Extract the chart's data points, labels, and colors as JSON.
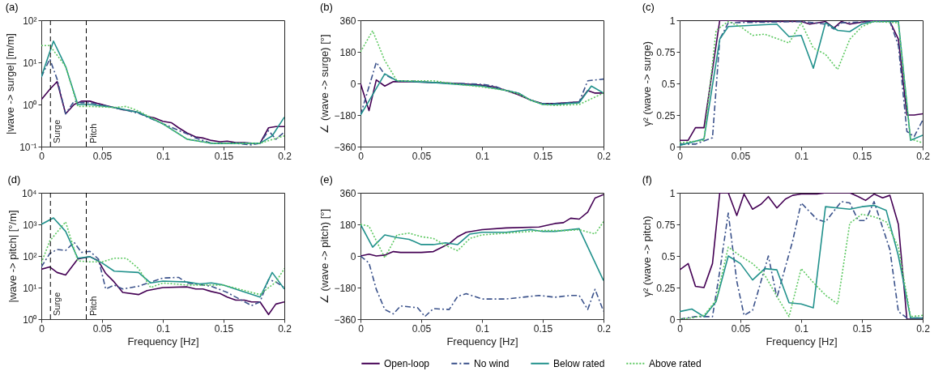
{
  "chart_data": [
    {
      "type": "line",
      "title": "(a)",
      "ylabel": "|wave -> surge| [m/m]",
      "log": "y",
      "xlim": [
        0,
        0.2
      ],
      "xticks": [
        0,
        0.05,
        0.1,
        0.15,
        0.2
      ],
      "ylim": [
        0.1,
        100
      ],
      "yticks": [
        {
          "value": 0.1,
          "label": "10⁻¹"
        },
        {
          "value": 1,
          "label": "10⁰"
        },
        {
          "value": 10,
          "label": "10¹"
        },
        {
          "value": 100,
          "label": "10²"
        }
      ],
      "ref_lines": [
        {
          "axis": "x",
          "value": 0.0075,
          "label": "Surge",
          "color": "#000000",
          "line_style": "dashed"
        },
        {
          "axis": "x",
          "value": 0.037,
          "label": "Pitch",
          "color": "#000000",
          "line_style": "dashed"
        }
      ],
      "series": [
        {
          "color": "#440154",
          "line_style": "solid",
          "x": [
            0,
            0.007,
            0.013,
            0.02,
            0.027,
            0.033,
            0.04,
            0.047,
            0.053,
            0.06,
            0.067,
            0.073,
            0.08,
            0.087,
            0.093,
            0.1,
            0.107,
            0.113,
            0.12,
            0.127,
            0.133,
            0.14,
            0.147,
            0.153,
            0.16,
            0.167,
            0.173,
            0.18,
            0.187,
            0.193,
            0.2
          ],
          "values": [
            1.3,
            2.3,
            3.5,
            0.6,
            1.0,
            1.2,
            1.2,
            1.05,
            0.95,
            0.85,
            0.75,
            0.72,
            0.65,
            0.52,
            0.48,
            0.4,
            0.37,
            0.28,
            0.21,
            0.17,
            0.16,
            0.14,
            0.13,
            0.135,
            0.125,
            0.125,
            0.12,
            0.12,
            0.28,
            0.3,
            0.3
          ]
        },
        {
          "color": "#3b528b",
          "line_style": "dashed",
          "x": [
            0,
            0.007,
            0.013,
            0.02,
            0.027,
            0.033,
            0.04,
            0.06,
            0.08,
            0.1,
            0.12,
            0.127,
            0.14,
            0.16,
            0.173,
            0.18,
            0.187,
            0.193,
            0.2
          ],
          "values": [
            4.5,
            12,
            4,
            0.6,
            1.2,
            1.1,
            1.1,
            0.85,
            0.62,
            0.35,
            0.2,
            0.16,
            0.12,
            0.12,
            0.11,
            0.12,
            0.24,
            0.15,
            0.22
          ]
        },
        {
          "color": "#21918c",
          "line_style": "solid",
          "x": [
            0,
            0.01,
            0.02,
            0.03,
            0.04,
            0.06,
            0.08,
            0.1,
            0.12,
            0.14,
            0.16,
            0.18,
            0.19,
            0.2
          ],
          "values": [
            4.5,
            32,
            8,
            1.0,
            1.0,
            0.85,
            0.65,
            0.35,
            0.15,
            0.12,
            0.12,
            0.12,
            0.18,
            0.5
          ]
        },
        {
          "color": "#5ec962",
          "line_style": "dotted",
          "x": [
            0,
            0.007,
            0.02,
            0.03,
            0.04,
            0.06,
            0.07,
            0.08,
            0.1,
            0.12,
            0.14,
            0.16,
            0.18,
            0.2
          ],
          "values": [
            25,
            25,
            8,
            0.9,
            0.9,
            0.85,
            0.9,
            0.7,
            0.35,
            0.15,
            0.12,
            0.12,
            0.12,
            0.18
          ]
        }
      ]
    },
    {
      "type": "line",
      "title": "(b)",
      "ylabel": "∠ (wave -> surge) [°]",
      "xlim": [
        0,
        0.2
      ],
      "xticks": [
        0,
        0.05,
        0.1,
        0.15,
        0.2
      ],
      "ylim": [
        -360,
        360
      ],
      "yticks": [
        -360,
        -180,
        0,
        180,
        360
      ],
      "series": [
        {
          "color": "#440154",
          "line_style": "solid",
          "x": [
            0,
            0.007,
            0.013,
            0.02,
            0.027,
            0.04,
            0.06,
            0.08,
            0.1,
            0.11,
            0.12,
            0.13,
            0.14,
            0.15,
            0.16,
            0.18,
            0.187,
            0.193,
            0.2
          ],
          "values": [
            0,
            -155,
            20,
            -15,
            10,
            10,
            5,
            0,
            -10,
            -20,
            -40,
            -65,
            -95,
            -115,
            -115,
            -105,
            -40,
            -55,
            -55
          ]
        },
        {
          "color": "#3b528b",
          "line_style": "dashed",
          "x": [
            0,
            0.013,
            0.02,
            0.03,
            0.04,
            0.06,
            0.08,
            0.1,
            0.11,
            0.12,
            0.13,
            0.14,
            0.15,
            0.16,
            0.18,
            0.187,
            0.2
          ],
          "values": [
            -180,
            120,
            50,
            15,
            15,
            5,
            0,
            -5,
            -15,
            -40,
            -55,
            -95,
            -115,
            -115,
            -105,
            15,
            25
          ]
        },
        {
          "color": "#21918c",
          "line_style": "solid",
          "x": [
            0,
            0.007,
            0.02,
            0.03,
            0.06,
            0.08,
            0.1,
            0.12,
            0.13,
            0.14,
            0.15,
            0.16,
            0.18,
            0.19,
            0.2
          ],
          "values": [
            -180,
            -100,
            55,
            15,
            5,
            -5,
            -15,
            -40,
            -55,
            -95,
            -120,
            -120,
            -110,
            -15,
            -55
          ]
        },
        {
          "color": "#5ec962",
          "line_style": "dotted",
          "x": [
            0,
            0.01,
            0.02,
            0.03,
            0.06,
            0.08,
            0.1,
            0.12,
            0.13,
            0.14,
            0.15,
            0.16,
            0.18,
            0.2
          ],
          "values": [
            180,
            300,
            130,
            15,
            15,
            -5,
            -20,
            -40,
            -60,
            -95,
            -120,
            -125,
            -120,
            -55
          ]
        }
      ]
    },
    {
      "type": "line",
      "title": "(c)",
      "ylabel": "γ² (wave -> surge)",
      "xlim": [
        0,
        0.2
      ],
      "xticks": [
        0,
        0.05,
        0.1,
        0.15,
        0.2
      ],
      "ylim": [
        0,
        1
      ],
      "yticks": [
        0,
        0.25,
        0.5,
        0.75,
        1
      ],
      "series": [
        {
          "color": "#440154",
          "line_style": "solid",
          "x": [
            0,
            0.007,
            0.013,
            0.02,
            0.033,
            0.04,
            0.06,
            0.08,
            0.1,
            0.107,
            0.12,
            0.127,
            0.133,
            0.14,
            0.16,
            0.173,
            0.18,
            0.187,
            0.193,
            0.2
          ],
          "values": [
            0.05,
            0.05,
            0.15,
            0.15,
            1.0,
            1.0,
            0.99,
            0.99,
            0.99,
            0.97,
            0.99,
            0.94,
            0.99,
            0.97,
            1.0,
            0.99,
            0.85,
            0.25,
            0.25,
            0.26
          ]
        },
        {
          "color": "#3b528b",
          "line_style": "dashed",
          "x": [
            0,
            0.013,
            0.027,
            0.033,
            0.04,
            0.1,
            0.12,
            0.127,
            0.133,
            0.16,
            0.173,
            0.18,
            0.187,
            0.193,
            0.2
          ],
          "values": [
            0.02,
            0.02,
            0.07,
            0.85,
            0.98,
            0.99,
            0.97,
            0.93,
            0.98,
            0.99,
            0.99,
            0.8,
            0.12,
            0.08,
            0.21
          ]
        },
        {
          "color": "#21918c",
          "line_style": "solid",
          "x": [
            0,
            0.02,
            0.033,
            0.04,
            0.06,
            0.08,
            0.09,
            0.1,
            0.11,
            0.12,
            0.13,
            0.14,
            0.15,
            0.16,
            0.18,
            0.19,
            0.2
          ],
          "values": [
            0.01,
            0.06,
            0.85,
            0.95,
            0.96,
            0.97,
            0.87,
            0.88,
            0.62,
            0.98,
            0.92,
            0.91,
            0.97,
            0.99,
            0.99,
            0.05,
            0.09
          ]
        },
        {
          "color": "#5ec962",
          "line_style": "dotted",
          "x": [
            0,
            0.02,
            0.03,
            0.04,
            0.05,
            0.06,
            0.07,
            0.09,
            0.1,
            0.11,
            0.12,
            0.13,
            0.14,
            0.15,
            0.16,
            0.18,
            0.19,
            0.2
          ],
          "values": [
            0.03,
            0.05,
            0.92,
            0.99,
            0.95,
            0.88,
            0.89,
            0.82,
            0.98,
            0.78,
            0.73,
            0.61,
            0.85,
            0.95,
            0.99,
            0.98,
            0.06,
            0.03
          ]
        }
      ]
    },
    {
      "type": "line",
      "title": "(d)",
      "xlabel": "Frequency [Hz]",
      "ylabel": "|wave -> pitch| [°/m]",
      "log": "y",
      "xlim": [
        0,
        0.2
      ],
      "xticks": [
        0,
        0.05,
        0.1,
        0.15,
        0.2
      ],
      "ylim": [
        1,
        10000
      ],
      "yticks": [
        {
          "value": 1,
          "label": "10⁰"
        },
        {
          "value": 10,
          "label": "10¹"
        },
        {
          "value": 100,
          "label": "10²"
        },
        {
          "value": 1000,
          "label": "10³"
        },
        {
          "value": 10000,
          "label": "10⁴"
        }
      ],
      "ref_lines": [
        {
          "axis": "x",
          "value": 0.0075,
          "label": "Surge",
          "color": "#000000",
          "line_style": "dashed"
        },
        {
          "axis": "x",
          "value": 0.037,
          "label": "Pitch",
          "color": "#000000",
          "line_style": "dashed"
        }
      ],
      "series": [
        {
          "color": "#440154",
          "line_style": "solid",
          "x": [
            0,
            0.007,
            0.013,
            0.02,
            0.03,
            0.04,
            0.047,
            0.053,
            0.06,
            0.067,
            0.08,
            0.087,
            0.1,
            0.12,
            0.127,
            0.133,
            0.14,
            0.147,
            0.153,
            0.16,
            0.167,
            0.173,
            0.18,
            0.187,
            0.193,
            0.2
          ],
          "values": [
            38,
            45,
            30,
            25,
            80,
            95,
            70,
            28,
            15,
            7,
            6,
            8,
            10,
            10.5,
            9,
            9,
            7.5,
            6.5,
            5,
            4,
            4,
            3.5,
            3.5,
            1.4,
            3,
            3.5
          ]
        },
        {
          "color": "#3b528b",
          "line_style": "dashed",
          "x": [
            0,
            0.007,
            0.013,
            0.02,
            0.027,
            0.033,
            0.04,
            0.047,
            0.053,
            0.06,
            0.067,
            0.08,
            0.1,
            0.113,
            0.12,
            0.14,
            0.153,
            0.173,
            0.18,
            0.187,
            0.193,
            0.2
          ],
          "values": [
            45,
            120,
            160,
            150,
            270,
            130,
            140,
            80,
            9,
            12,
            9,
            11,
            20,
            21,
            14,
            11,
            7,
            2.7,
            3.5,
            18,
            15,
            10
          ]
        },
        {
          "color": "#21918c",
          "line_style": "solid",
          "x": [
            0,
            0.01,
            0.02,
            0.03,
            0.04,
            0.05,
            0.06,
            0.08,
            0.09,
            0.1,
            0.12,
            0.13,
            0.14,
            0.15,
            0.18,
            0.19,
            0.2
          ],
          "values": [
            1000,
            1600,
            600,
            85,
            95,
            60,
            33,
            30,
            14,
            16,
            15,
            13,
            14,
            12,
            5,
            30,
            9
          ]
        },
        {
          "color": "#5ec962",
          "line_style": "dotted",
          "x": [
            0,
            0.007,
            0.02,
            0.03,
            0.04,
            0.05,
            0.06,
            0.07,
            0.08,
            0.09,
            0.1,
            0.12,
            0.15,
            0.18,
            0.193,
            0.2
          ],
          "values": [
            60,
            300,
            1200,
            70,
            65,
            65,
            85,
            85,
            40,
            10,
            14,
            12,
            12,
            6,
            15,
            40
          ]
        }
      ]
    },
    {
      "type": "line",
      "title": "(e)",
      "xlabel": "Frequency [Hz]",
      "ylabel": "∠ (wave -> pitch) [°]",
      "legend": "bottom",
      "xlim": [
        0,
        0.2
      ],
      "xticks": [
        0,
        0.05,
        0.1,
        0.15,
        0.2
      ],
      "ylim": [
        -360,
        360
      ],
      "yticks": [
        -360,
        -180,
        0,
        180,
        360
      ],
      "series": [
        {
          "name": "Open-loop",
          "color": "#440154",
          "line_style": "solid",
          "x": [
            0,
            0.007,
            0.013,
            0.02,
            0.027,
            0.033,
            0.05,
            0.06,
            0.067,
            0.073,
            0.08,
            0.087,
            0.1,
            0.12,
            0.147,
            0.16,
            0.167,
            0.173,
            0.18,
            0.187,
            0.193,
            0.2
          ],
          "values": [
            0,
            10,
            0,
            5,
            25,
            20,
            20,
            25,
            50,
            70,
            110,
            135,
            150,
            160,
            165,
            185,
            190,
            215,
            210,
            250,
            330,
            350
          ]
        },
        {
          "name": "No wind",
          "color": "#3b528b",
          "line_style": "dashed",
          "x": [
            0,
            0.007,
            0.013,
            0.02,
            0.027,
            0.033,
            0.047,
            0.053,
            0.06,
            0.073,
            0.08,
            0.087,
            0.1,
            0.12,
            0.147,
            0.16,
            0.173,
            0.18,
            0.187,
            0.193,
            0.2
          ],
          "values": [
            0,
            -40,
            -190,
            -305,
            -330,
            -285,
            -295,
            -345,
            -300,
            -305,
            -230,
            -215,
            -245,
            -245,
            -225,
            -235,
            -225,
            -225,
            -305,
            -190,
            -315
          ]
        },
        {
          "name": "Below rated",
          "color": "#21918c",
          "line_style": "solid",
          "x": [
            0,
            0.01,
            0.02,
            0.03,
            0.04,
            0.05,
            0.06,
            0.07,
            0.08,
            0.09,
            0.1,
            0.12,
            0.14,
            0.15,
            0.16,
            0.18,
            0.2
          ],
          "values": [
            180,
            50,
            120,
            105,
            95,
            65,
            65,
            75,
            65,
            125,
            135,
            135,
            150,
            140,
            140,
            155,
            -140
          ]
        },
        {
          "name": "Above rated",
          "color": "#5ec962",
          "line_style": "dotted",
          "x": [
            0,
            0.007,
            0.02,
            0.03,
            0.04,
            0.05,
            0.06,
            0.07,
            0.08,
            0.09,
            0.1,
            0.12,
            0.15,
            0.17,
            0.18,
            0.193,
            0.2
          ],
          "values": [
            180,
            170,
            -10,
            120,
            130,
            110,
            100,
            60,
            30,
            100,
            120,
            130,
            145,
            145,
            150,
            125,
            195
          ]
        }
      ]
    },
    {
      "type": "line",
      "title": "(f)",
      "xlabel": "Frequency [Hz]",
      "ylabel": "γ² (wave -> pitch)",
      "xlim": [
        0,
        0.2
      ],
      "xticks": [
        0,
        0.05,
        0.1,
        0.15,
        0.2
      ],
      "ylim": [
        0,
        1
      ],
      "yticks": [
        0,
        0.25,
        0.5,
        0.75,
        1
      ],
      "series": [
        {
          "color": "#440154",
          "line_style": "solid",
          "x": [
            0,
            0.007,
            0.013,
            0.02,
            0.027,
            0.033,
            0.04,
            0.047,
            0.053,
            0.06,
            0.067,
            0.073,
            0.08,
            0.087,
            0.093,
            0.1,
            0.113,
            0.12,
            0.14,
            0.147,
            0.153,
            0.16,
            0.167,
            0.173,
            0.18,
            0.187,
            0.2
          ],
          "values": [
            0.39,
            0.44,
            0.26,
            0.25,
            0.44,
            1.0,
            1.0,
            0.82,
            0.99,
            0.87,
            0.91,
            0.97,
            0.88,
            0.95,
            0.98,
            0.99,
            0.99,
            1.0,
            1.0,
            0.97,
            0.94,
            0.99,
            0.96,
            0.98,
            0.75,
            0.0,
            0.0
          ]
        },
        {
          "color": "#3b528b",
          "line_style": "dashed",
          "x": [
            0,
            0.013,
            0.027,
            0.033,
            0.04,
            0.047,
            0.053,
            0.06,
            0.073,
            0.08,
            0.093,
            0.1,
            0.113,
            0.12,
            0.133,
            0.14,
            0.147,
            0.153,
            0.16,
            0.173,
            0.18,
            0.187,
            0.2
          ],
          "values": [
            0.0,
            0.02,
            0.02,
            0.38,
            0.84,
            0.3,
            0.03,
            0.07,
            0.5,
            0.17,
            0.62,
            0.92,
            0.79,
            0.77,
            0.93,
            0.92,
            0.78,
            0.78,
            0.93,
            0.55,
            0.06,
            0.01,
            0.01
          ]
        },
        {
          "color": "#21918c",
          "line_style": "solid",
          "x": [
            0,
            0.01,
            0.02,
            0.03,
            0.04,
            0.05,
            0.06,
            0.07,
            0.08,
            0.09,
            0.1,
            0.11,
            0.12,
            0.13,
            0.14,
            0.15,
            0.16,
            0.17,
            0.18,
            0.19,
            0.2
          ],
          "values": [
            0.06,
            0.08,
            0.02,
            0.14,
            0.5,
            0.44,
            0.31,
            0.4,
            0.39,
            0.13,
            0.12,
            0.09,
            0.89,
            0.88,
            0.87,
            0.89,
            0.9,
            0.86,
            0.5,
            0.01,
            0.01
          ]
        },
        {
          "color": "#5ec962",
          "line_style": "dotted",
          "x": [
            0,
            0.01,
            0.02,
            0.03,
            0.04,
            0.05,
            0.06,
            0.07,
            0.08,
            0.09,
            0.1,
            0.11,
            0.12,
            0.13,
            0.14,
            0.15,
            0.16,
            0.17,
            0.18,
            0.19,
            0.2
          ],
          "values": [
            0.0,
            0.01,
            0.03,
            0.15,
            0.57,
            0.5,
            0.44,
            0.35,
            0.18,
            0.02,
            0.4,
            0.29,
            0.19,
            0.12,
            0.76,
            0.83,
            0.81,
            0.77,
            0.57,
            0.02,
            0.03
          ]
        }
      ]
    }
  ]
}
